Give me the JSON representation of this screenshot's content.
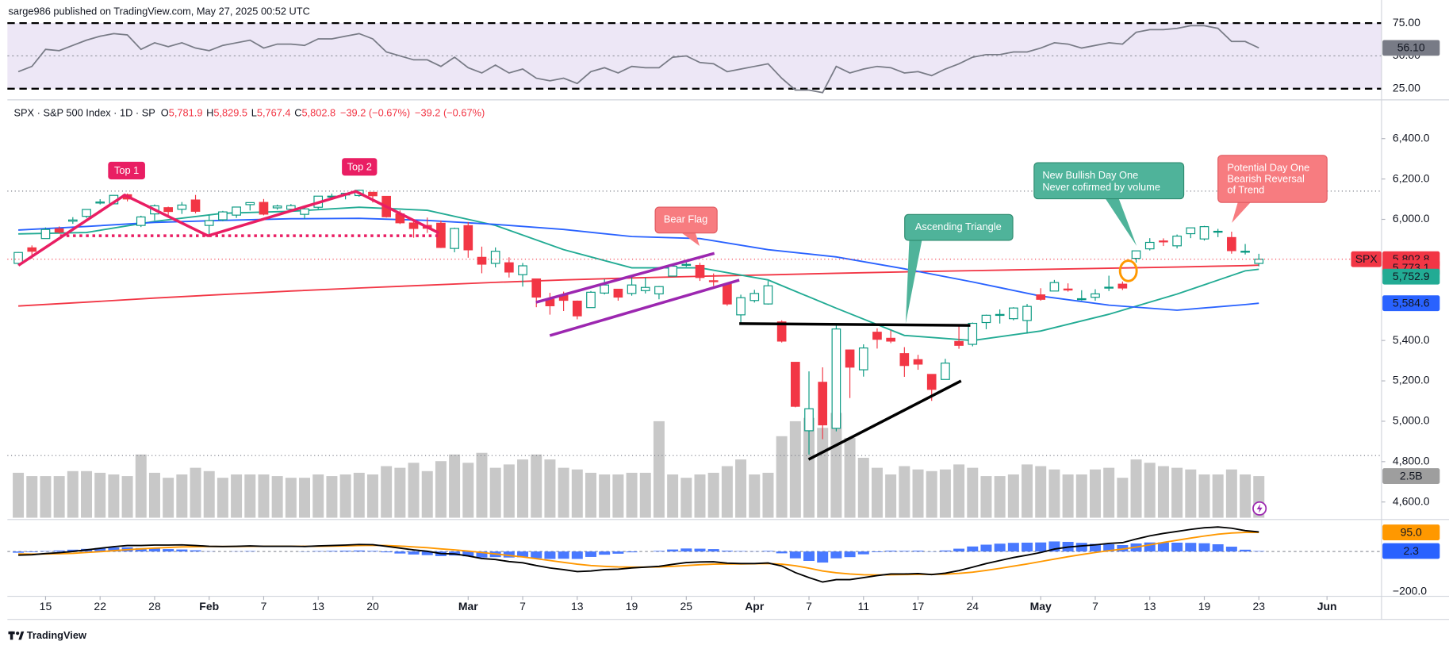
{
  "header": "sarge986 published on TradingView.com, May 27, 2025 00:52 UTC",
  "footer": "TradingView",
  "chart_data": {
    "type": "candlestick",
    "legend": {
      "symbol": "SPX · S&P 500 Index · 1D · SP",
      "items": [
        {
          "key": "O",
          "value": "5,781.9"
        },
        {
          "key": "H",
          "value": "5,829.5"
        },
        {
          "key": "L",
          "value": "5,767.4"
        },
        {
          "key": "C",
          "value": "5,802.8"
        }
      ],
      "change": [
        "−39.2 (−0.67%)",
        "−39.2 (−0.67%)"
      ]
    },
    "symbol_tag": "SPX",
    "annotations": [
      "Top 1",
      "Top 2",
      "Bear Flag",
      "Ascending Triangle",
      [
        "New Bullish Day One",
        "Never cofirmed by volume"
      ],
      [
        "Potential Day One",
        "Bearish Reversal",
        "of Trend"
      ]
    ],
    "xlim": [
      -0.8,
      100
    ],
    "xticks": [
      {
        "value": 2,
        "label": "15"
      },
      {
        "value": 6,
        "label": "22"
      },
      {
        "value": 10,
        "label": "28"
      },
      {
        "value": 14,
        "label": "Feb"
      },
      {
        "value": 18,
        "label": "7"
      },
      {
        "value": 22,
        "label": "13"
      },
      {
        "value": 26,
        "label": "20"
      },
      {
        "value": 33,
        "label": "Mar"
      },
      {
        "value": 37,
        "label": "7"
      },
      {
        "value": 41,
        "label": "13"
      },
      {
        "value": 45,
        "label": "19"
      },
      {
        "value": 49,
        "label": "25"
      },
      {
        "value": 54,
        "label": "Apr"
      },
      {
        "value": 58,
        "label": "7"
      },
      {
        "value": 62,
        "label": "11"
      },
      {
        "value": 66,
        "label": "17"
      },
      {
        "value": 70,
        "label": "24"
      },
      {
        "value": 75,
        "label": "May"
      },
      {
        "value": 79,
        "label": "7"
      },
      {
        "value": 83,
        "label": "13"
      },
      {
        "value": 87,
        "label": "19"
      },
      {
        "value": 91,
        "label": "23"
      },
      {
        "value": 96,
        "label": "Jun"
      }
    ],
    "ylim": [
      4513,
      6592
    ],
    "yticks": [
      {
        "value": 6400,
        "label": "6,400.0"
      },
      {
        "value": 6200,
        "label": "6,200.0"
      },
      {
        "value": 6000,
        "label": "6,000.0"
      },
      {
        "value": 5400,
        "label": "5,400.0"
      },
      {
        "value": 5200,
        "label": "5,200.0"
      },
      {
        "value": 5000,
        "label": "5,000.0"
      },
      {
        "value": 4800,
        "label": "4,800.0"
      },
      {
        "value": 4600,
        "label": "4,600.0"
      }
    ],
    "grid": false,
    "up_color": "#089981",
    "down_color": "#f23645",
    "last_label": "5,802.8",
    "levels": [
      6140,
      4830
    ],
    "open": [
      5782,
      5859,
      5905,
      5953,
      5991,
      6015,
      6081,
      6077,
      6122,
      5970,
      6027,
      6058,
      6050,
      6096,
      5970,
      5998,
      6021,
      6073,
      6084,
      6057,
      6050,
      6025,
      6060,
      6115,
      6121,
      6118,
      6134,
      6114,
      6027,
      5982,
      5970,
      5981,
      5856,
      5969,
      5812,
      5782,
      5785,
      5726,
      5705,
      5604,
      5624,
      5595,
      5563,
      5635,
      5654,
      5633,
      5647,
      5631,
      5719,
      5776,
      5772,
      5696,
      5679,
      5527,
      5598,
      5581,
      5492,
      5292,
      4953,
      5193,
      4965,
      5353,
      5255,
      5441,
      5411,
      5335,
      5305,
      5232,
      5207,
      5395,
      5381,
      5489,
      5529,
      5508,
      5499,
      5626,
      5645,
      5655,
      5606,
      5614,
      5663,
      5679,
      5807,
      5854,
      5893,
      5869,
      5929,
      5903,
      5941,
      5910,
      5841,
      5781.9
    ],
    "high": [
      5838,
      5871,
      5960,
      5965,
      6011,
      6051,
      6100,
      6119,
      6128,
      6018,
      6074,
      6063,
      6086,
      6121,
      6022,
      6042,
      6062,
      6084,
      6101,
      6073,
      6076,
      6064,
      6116,
      6127,
      6129,
      6147,
      6134,
      6114,
      6044,
      5993,
      6009,
      5994,
      5959,
      5987,
      5865,
      5861,
      5812,
      5784,
      5706,
      5636,
      5642,
      5598,
      5645,
      5704,
      5654,
      5716,
      5711,
      5670,
      5776,
      5787,
      5785,
      5732,
      5685,
      5627,
      5651,
      5695,
      5500,
      5292,
      5247,
      5267,
      5481,
      5355,
      5381,
      5460,
      5450,
      5367,
      5329,
      5232,
      5309,
      5470,
      5489,
      5528,
      5554,
      5565,
      5581,
      5659,
      5700,
      5683,
      5649,
      5654,
      5721,
      5692,
      5845,
      5907,
      5906,
      5925,
      5959,
      5968,
      5953,
      5939,
      5878,
      5829.5
    ],
    "low": [
      5773,
      5805,
      5905,
      5929,
      5978,
      6007,
      6074,
      6074,
      6089,
      5962,
      5995,
      6012,
      6027,
      6030,
      5924,
      5991,
      6007,
      6044,
      6020,
      6048,
      6042,
      6003,
      6051,
      6107,
      6099,
      6112,
      6084,
      6009,
      5977,
      5909,
      5933,
      5858,
      5837,
      5810,
      5733,
      5762,
      5712,
      5667,
      5565,
      5528,
      5546,
      5505,
      5563,
      5628,
      5597,
      5622,
      5633,
      5604,
      5719,
      5765,
      5695,
      5670,
      5572,
      5489,
      5588,
      5578,
      5390,
      5069,
      4835,
      4911,
      4950,
      5115,
      5221,
      5360,
      5387,
      5220,
      5255,
      5101,
      5207,
      5359,
      5371,
      5456,
      5484,
      5500,
      5434,
      5597,
      5645,
      5642,
      5598,
      5597,
      5645,
      5650,
      5786,
      5846,
      5868,
      5856,
      5907,
      5895,
      5912,
      5830,
      5826,
      5767.4
    ],
    "close": [
      5836,
      5842,
      5950,
      5937,
      5997,
      6049,
      6086,
      6119,
      6101,
      6012,
      6067,
      6039,
      6071,
      6040,
      5994,
      6037,
      6061,
      6083,
      6026,
      6066,
      6068,
      6052,
      6115,
      6115,
      6129,
      6144,
      6117,
      6013,
      5983,
      5955,
      5956,
      5861,
      5955,
      5849,
      5778,
      5842,
      5739,
      5770,
      5615,
      5572,
      5599,
      5522,
      5639,
      5675,
      5615,
      5675,
      5663,
      5667,
      5768,
      5777,
      5712,
      5693,
      5581,
      5612,
      5633,
      5671,
      5397,
      5074,
      5062,
      4982,
      5457,
      5268,
      5363,
      5406,
      5397,
      5276,
      5283,
      5158,
      5288,
      5376,
      5485,
      5525,
      5529,
      5561,
      5569,
      5604,
      5687,
      5650,
      5607,
      5631,
      5664,
      5660,
      5844,
      5886,
      5892,
      5917,
      5958,
      5964,
      5941,
      5845,
      5842,
      5802.8
    ],
    "moving_averages": [
      {
        "color": "#f23645",
        "x": [
          0,
          5,
          10,
          15,
          20,
          25,
          30,
          35,
          40,
          45,
          50,
          55,
          60,
          65,
          70,
          75,
          80,
          85,
          90,
          91
        ],
        "values": [
          5571,
          5590,
          5610,
          5628,
          5645,
          5660,
          5674,
          5688,
          5700,
          5710,
          5718,
          5725,
          5733,
          5740,
          5746,
          5752,
          5758,
          5764,
          5771,
          5773.1
        ],
        "last_label": "5,773.1"
      },
      {
        "color": "#22ab94",
        "x": [
          0,
          5,
          10,
          15,
          20,
          25,
          30,
          35,
          40,
          45,
          50,
          55,
          60,
          65,
          70,
          75,
          80,
          85,
          90,
          91
        ],
        "values": [
          5928,
          5935,
          5990,
          6030,
          6040,
          6060,
          6045,
          5970,
          5850,
          5760,
          5760,
          5700,
          5560,
          5425,
          5400,
          5447,
          5530,
          5630,
          5745,
          5752.9
        ],
        "last_label": "5,752.9"
      },
      {
        "color": "#2962ff",
        "x": [
          0,
          5,
          10,
          15,
          20,
          25,
          30,
          35,
          40,
          45,
          50,
          55,
          60,
          65,
          70,
          75,
          80,
          85,
          90,
          91
        ],
        "values": [
          5947,
          5965,
          5985,
          5995,
          6003,
          6005,
          5995,
          5975,
          5950,
          5915,
          5905,
          5850,
          5814,
          5755,
          5690,
          5620,
          5575,
          5550,
          5578,
          5584.6
        ],
        "last_label": "5,584.6"
      }
    ],
    "volume": {
      "color": "#c8c8c8",
      "ylim": [
        0,
        8
      ],
      "last_label": "2.5B",
      "values": [
        2.7,
        2.5,
        2.5,
        2.5,
        2.8,
        2.8,
        2.7,
        2.6,
        2.5,
        3.8,
        2.7,
        2.4,
        2.6,
        3.0,
        2.8,
        2.4,
        2.6,
        2.6,
        2.6,
        2.5,
        2.4,
        2.4,
        2.6,
        2.5,
        2.6,
        2.7,
        2.6,
        3.1,
        3.0,
        3.3,
        2.8,
        3.4,
        3.8,
        3.3,
        3.9,
        3.0,
        3.2,
        3.5,
        3.8,
        3.5,
        3.0,
        2.9,
        2.7,
        2.6,
        2.6,
        2.7,
        2.7,
        5.8,
        2.6,
        2.4,
        2.6,
        2.7,
        3.1,
        3.5,
        2.6,
        2.7,
        4.9,
        5.8,
        6.0,
        5.4,
        6.3,
        4.8,
        3.6,
        3.0,
        2.6,
        3.1,
        2.9,
        2.8,
        2.9,
        3.2,
        3.0,
        2.5,
        2.5,
        2.6,
        3.2,
        3.1,
        2.9,
        2.6,
        2.6,
        2.9,
        3.0,
        2.4,
        3.5,
        3.3,
        3.1,
        3.0,
        2.9,
        2.6,
        2.6,
        2.9,
        2.6,
        2.5
      ]
    },
    "rsi": {
      "color": "#787b86",
      "ylim": [
        16.5,
        92.6
      ],
      "last_label": "56.10",
      "yticks": [
        {
          "value": 75,
          "label": "75.00"
        },
        {
          "value": 50,
          "label": "50.00"
        },
        {
          "value": 25,
          "label": "25.00"
        }
      ],
      "values": [
        38,
        42,
        55,
        54,
        58,
        62,
        65,
        67,
        66,
        55,
        60,
        57,
        60,
        56,
        54,
        58,
        60,
        62,
        56,
        59,
        59,
        58,
        63,
        63,
        65,
        67,
        63,
        53,
        50,
        47,
        47,
        42,
        49,
        41,
        37,
        43,
        37,
        40,
        33,
        31,
        33,
        29,
        38,
        41,
        37,
        42,
        41,
        41,
        49,
        50,
        45,
        44,
        38,
        40,
        42,
        44,
        33,
        24,
        24,
        22,
        42,
        37,
        40,
        42,
        41,
        37,
        38,
        35,
        40,
        44,
        49,
        51,
        51,
        53,
        53,
        56,
        60,
        59,
        56,
        58,
        60,
        59,
        68,
        70,
        70,
        71,
        73,
        73,
        71,
        61,
        61,
        56.1
      ]
    },
    "macd": {
      "ylim": [
        -223,
        159
      ],
      "yticks": [
        {
          "value": -200,
          "label": "−200.0"
        }
      ],
      "macd_color": "#000000",
      "signal_color": "#ff9800",
      "hist_color": "#2962ff",
      "macd": [
        -18,
        -16,
        -10,
        -6,
        0,
        8,
        16,
        24,
        30,
        30,
        32,
        32,
        33,
        30,
        26,
        25,
        26,
        28,
        26,
        26,
        26,
        25,
        28,
        30,
        32,
        35,
        34,
        26,
        17,
        8,
        1,
        -10,
        -12,
        -22,
        -35,
        -40,
        -50,
        -56,
        -70,
        -82,
        -90,
        -100,
        -97,
        -90,
        -88,
        -82,
        -78,
        -74,
        -64,
        -55,
        -52,
        -51,
        -58,
        -60,
        -60,
        -57,
        -72,
        -105,
        -130,
        -152,
        -140,
        -140,
        -130,
        -120,
        -112,
        -112,
        -110,
        -115,
        -108,
        -95,
        -78,
        -60,
        -45,
        -30,
        -18,
        -5,
        12,
        22,
        28,
        33,
        40,
        44,
        62,
        78,
        90,
        100,
        110,
        118,
        122,
        116,
        104,
        97.3
      ],
      "signal": [
        -12,
        -13,
        -12,
        -11,
        -9,
        -5,
        -1,
        4,
        9,
        13,
        17,
        20,
        23,
        24,
        25,
        25,
        25,
        26,
        26,
        26,
        26,
        26,
        26,
        27,
        28,
        30,
        31,
        30,
        27,
        23,
        19,
        13,
        8,
        2,
        -5,
        -12,
        -20,
        -27,
        -36,
        -45,
        -54,
        -63,
        -70,
        -74,
        -77,
        -78,
        -78,
        -77,
        -74,
        -70,
        -66,
        -63,
        -62,
        -62,
        -61,
        -60,
        -63,
        -71,
        -83,
        -97,
        -106,
        -112,
        -116,
        -117,
        -116,
        -115,
        -114,
        -114,
        -113,
        -109,
        -103,
        -94,
        -84,
        -73,
        -62,
        -50,
        -38,
        -26,
        -15,
        -5,
        4,
        12,
        22,
        33,
        45,
        56,
        67,
        77,
        86,
        92,
        95,
        95.0
      ],
      "histogram": [
        -6,
        -3,
        2,
        5,
        9,
        13,
        17,
        20,
        21,
        17,
        15,
        12,
        10,
        6,
        1,
        0,
        1,
        2,
        0,
        0,
        0,
        -1,
        2,
        3,
        4,
        5,
        3,
        -4,
        -10,
        -15,
        -18,
        -23,
        -20,
        -24,
        -30,
        -28,
        -30,
        -29,
        -34,
        -37,
        -36,
        -37,
        -27,
        -16,
        -11,
        -4,
        0,
        3,
        10,
        15,
        14,
        12,
        4,
        2,
        1,
        3,
        -9,
        -34,
        -47,
        -55,
        -34,
        -28,
        -14,
        -3,
        4,
        3,
        4,
        -1,
        5,
        14,
        25,
        34,
        39,
        43,
        44,
        45,
        50,
        48,
        43,
        38,
        36,
        32,
        40,
        45,
        45,
        44,
        43,
        41,
        36,
        24,
        9,
        2.3
      ],
      "signal_last_label": "95.0",
      "hist_last_label": "2.3"
    }
  }
}
